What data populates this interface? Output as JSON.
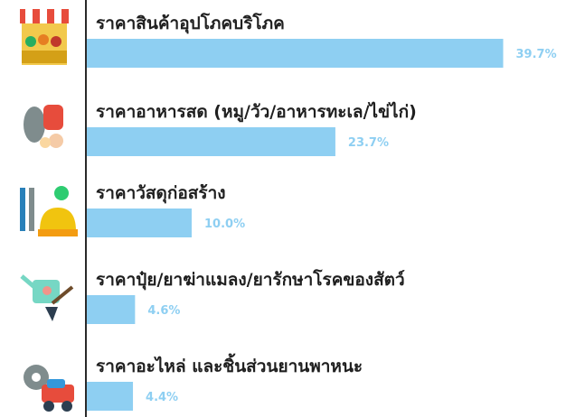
{
  "chart_data": {
    "type": "bar",
    "orientation": "horizontal",
    "categories": [
      "ราคาสินค้าอุปโภคบริโภค",
      "ราคาอาหารสด (หมู/วัว/อาหารทะเล/ไข่ไก่)",
      "ราคาวัสดุก่อสร้าง",
      "ราคาปุ๋ย/ยาฆ่าแมลง/ยารักษาโรคของสัตว์",
      "ราคาอะไหล่ และชิ้นส่วนยานพาหนะ"
    ],
    "values": [
      39.7,
      23.7,
      10.0,
      4.6,
      4.4
    ],
    "value_labels": [
      "39.7%",
      "23.7%",
      "10.0%",
      "4.6%",
      "4.4%"
    ],
    "icons": [
      "market-stall-icon",
      "fresh-food-icon",
      "construction-tools-icon",
      "fertilizer-watering-can-icon",
      "vehicle-parts-icon"
    ],
    "xlim": [
      0,
      40
    ],
    "grid": false,
    "legend": "none",
    "colors": {
      "bar": "#8ECFF2",
      "value_label": "#8ECFF2",
      "category_label": "#1f1f1f",
      "axis_line": "#2a2a2a"
    }
  }
}
